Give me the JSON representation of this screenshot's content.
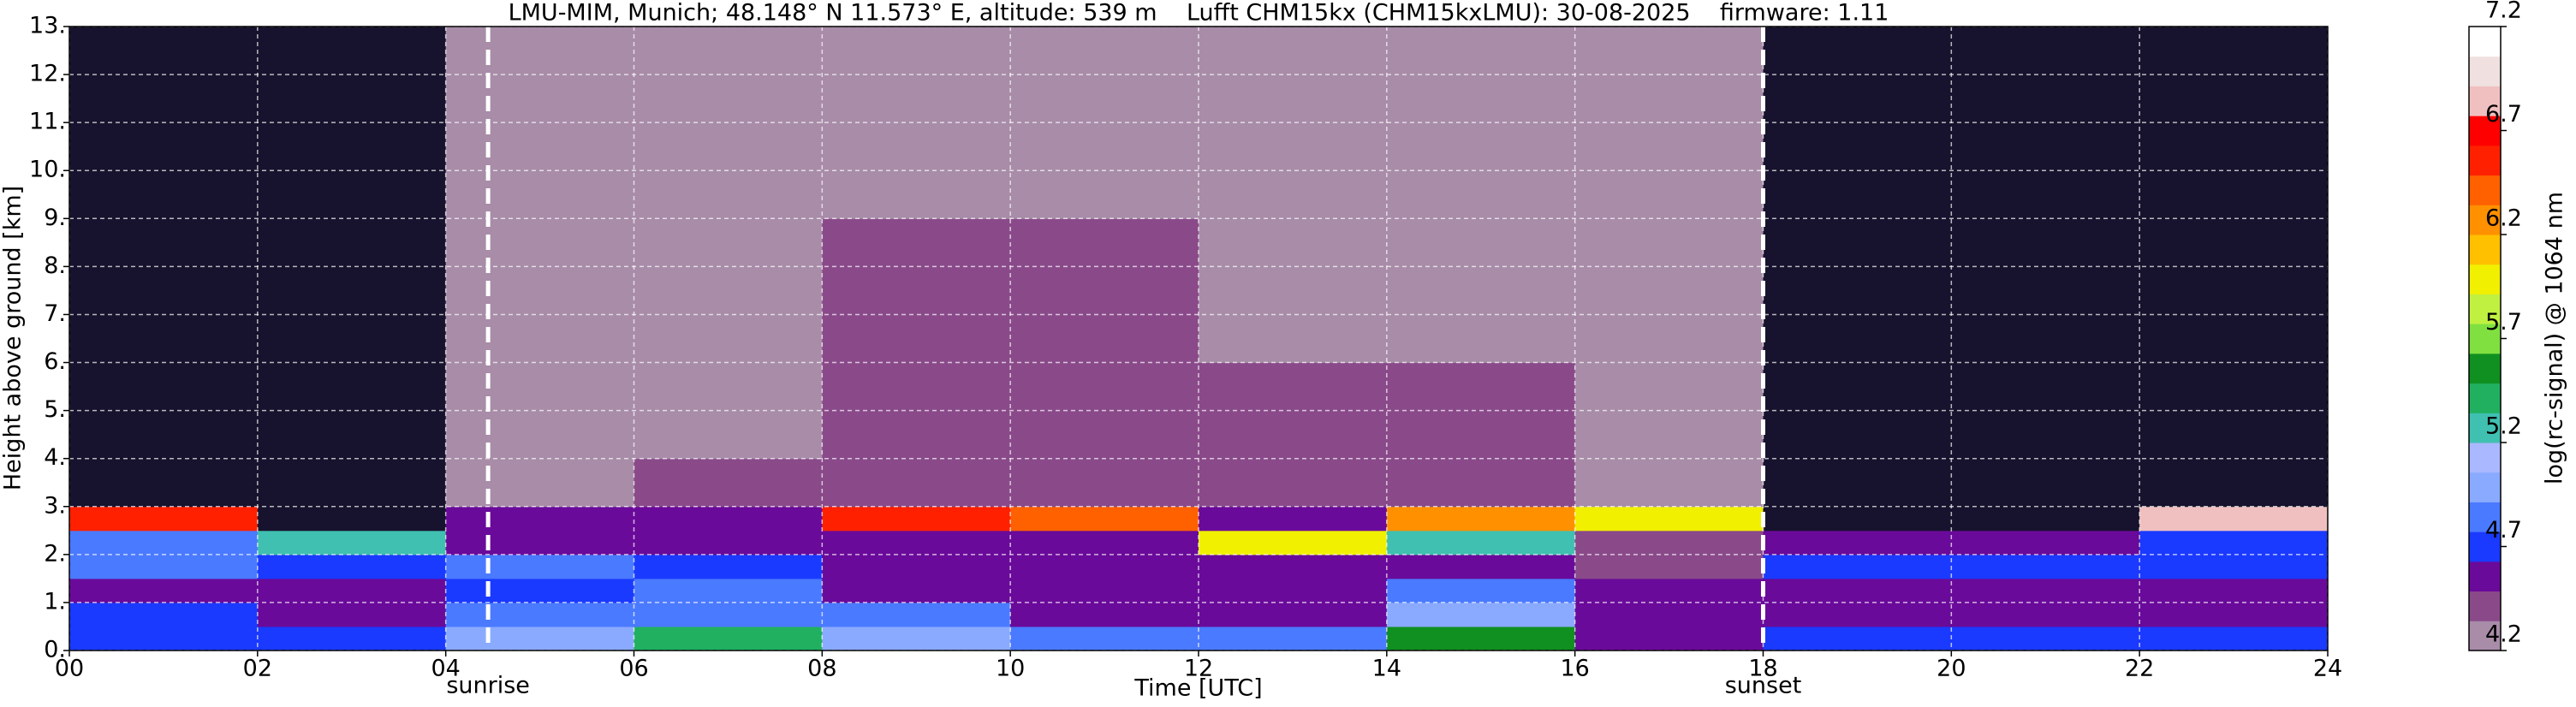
{
  "chart_data": {
    "type": "heatmap",
    "title": "LMU-MIM, Munich; 48.148° N 11.573° E, altitude: 539 m    Lufft CHM15kx (CHM15kxLMU): 30-08-2025    firmware: 1.11",
    "x_label": "Time [UTC]",
    "y_label": "Height above ground [km]",
    "colorbar_label": "log(rc-signal) @ 1064 nm",
    "x_edges": [
      0,
      2,
      4,
      6,
      8,
      10,
      12,
      14,
      16,
      18,
      20,
      22,
      24
    ],
    "y_edges": [
      0,
      0.5,
      1,
      1.5,
      2,
      2.5,
      3,
      4,
      6,
      9,
      13
    ],
    "z": [
      [
        4.75,
        4.7,
        5.0,
        5.4,
        5.0,
        4.8,
        4.8,
        5.5,
        4.6,
        4.7,
        4.7,
        4.75
      ],
      [
        4.7,
        4.6,
        4.8,
        4.9,
        4.8,
        4.6,
        4.6,
        5.0,
        4.55,
        4.6,
        4.6,
        4.6
      ],
      [
        4.6,
        4.5,
        4.7,
        4.8,
        4.6,
        4.5,
        4.5,
        4.8,
        4.5,
        4.6,
        4.6,
        4.6
      ],
      [
        4.8,
        4.7,
        4.9,
        4.7,
        4.5,
        4.5,
        4.5,
        4.6,
        4.45,
        4.7,
        4.7,
        4.7
      ],
      [
        4.9,
        5.2,
        4.6,
        4.6,
        4.5,
        4.5,
        6.0,
        5.2,
        4.4,
        4.5,
        4.6,
        4.7
      ],
      [
        6.5,
        4.1,
        4.5,
        4.5,
        6.6,
        6.4,
        4.5,
        6.3,
        6.0,
        4.1,
        4.1,
        6.8
      ],
      [
        4.0,
        4.0,
        4.3,
        4.35,
        4.4,
        4.4,
        4.4,
        4.4,
        4.3,
        4.0,
        4.0,
        4.0
      ],
      [
        4.0,
        4.0,
        4.3,
        4.3,
        4.35,
        4.35,
        4.35,
        4.35,
        4.3,
        4.0,
        4.0,
        4.0
      ],
      [
        4.0,
        4.0,
        4.3,
        4.3,
        4.35,
        4.35,
        4.3,
        4.3,
        4.25,
        4.0,
        4.0,
        4.0
      ],
      [
        4.0,
        4.0,
        4.2,
        4.25,
        4.3,
        4.3,
        4.3,
        4.25,
        4.2,
        4.0,
        4.0,
        4.0
      ]
    ],
    "xlim": [
      0,
      24
    ],
    "xticks": [
      {
        "value": 0,
        "label": "00"
      },
      {
        "value": 2,
        "label": "02"
      },
      {
        "value": 4,
        "label": "04"
      },
      {
        "value": 6,
        "label": "06"
      },
      {
        "value": 8,
        "label": "08"
      },
      {
        "value": 10,
        "label": "10"
      },
      {
        "value": 12,
        "label": "12"
      },
      {
        "value": 14,
        "label": "14"
      },
      {
        "value": 16,
        "label": "16"
      },
      {
        "value": 18,
        "label": "18"
      },
      {
        "value": 20,
        "label": "20"
      },
      {
        "value": 22,
        "label": "22"
      },
      {
        "value": 24,
        "label": "24"
      }
    ],
    "ylim": [
      0,
      13
    ],
    "yticks": [
      {
        "value": 0,
        "label": "0."
      },
      {
        "value": 1,
        "label": "1."
      },
      {
        "value": 2,
        "label": "2."
      },
      {
        "value": 3,
        "label": "3."
      },
      {
        "value": 4,
        "label": "4."
      },
      {
        "value": 5,
        "label": "5."
      },
      {
        "value": 6,
        "label": "6."
      },
      {
        "value": 7,
        "label": "7."
      },
      {
        "value": 8,
        "label": "8."
      },
      {
        "value": 9,
        "label": "9."
      },
      {
        "value": 10,
        "label": "10."
      },
      {
        "value": 11,
        "label": "11."
      },
      {
        "value": 12,
        "label": "12."
      },
      {
        "value": 13,
        "label": "13."
      }
    ],
    "clim": [
      4.2,
      7.2
    ],
    "cticks": [
      4.2,
      4.7,
      5.2,
      5.7,
      6.2,
      6.7,
      7.2
    ],
    "colorscale": [
      "#a88ca8",
      "#8a4a8a",
      "#6a0a9a",
      "#1a3aff",
      "#4a7aff",
      "#8aaaff",
      "#aab8ff",
      "#40c0b0",
      "#20b060",
      "#109020",
      "#80e040",
      "#c0f040",
      "#f0f000",
      "#ffc000",
      "#ff9000",
      "#ff6000",
      "#ff2000",
      "#ff0000",
      "#f0c0c0",
      "#f0e0e0",
      "#ffffff"
    ],
    "under_color": "#17132e",
    "grid": true,
    "annotations": [
      {
        "x": 4.45,
        "label": "sunrise"
      },
      {
        "x": 18,
        "label": "sunset"
      }
    ]
  }
}
